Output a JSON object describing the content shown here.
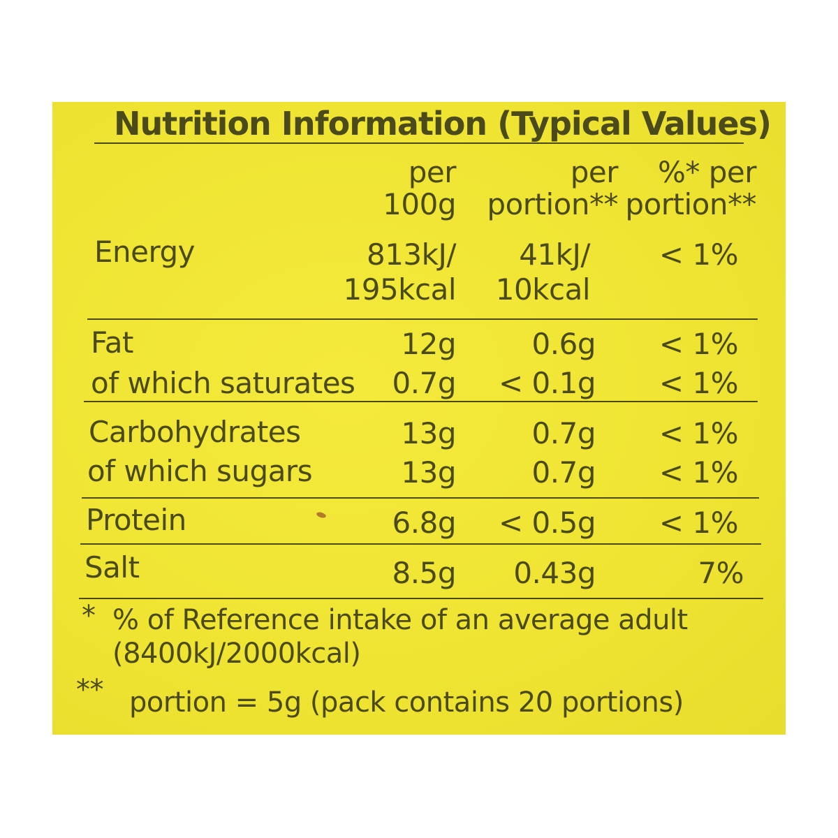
{
  "title": "Nutrition Information (Typical Values)",
  "columns": {
    "per100g": [
      "per",
      "100g"
    ],
    "perPortion": [
      "per",
      "portion**"
    ],
    "pctPortion": [
      "%* per",
      "portion**"
    ]
  },
  "rows": {
    "energy": {
      "label": "Energy",
      "per100g": [
        "813kJ/",
        "195kcal"
      ],
      "perPortion": [
        "41kJ/",
        "10kcal"
      ],
      "pct": "< 1%"
    },
    "fat": {
      "label": "Fat",
      "per100g": "12g",
      "perPortion": "0.6g",
      "pct": "< 1%"
    },
    "saturates": {
      "label": "of which saturates",
      "per100g": "0.7g",
      "perPortion": "< 0.1g",
      "pct": "< 1%"
    },
    "carbs": {
      "label": "Carbohydrates",
      "per100g": "13g",
      "perPortion": "0.7g",
      "pct": "< 1%"
    },
    "sugars": {
      "label": "of which sugars",
      "per100g": "13g",
      "perPortion": "0.7g",
      "pct": "< 1%"
    },
    "protein": {
      "label": "Protein",
      "per100g": "6.8g",
      "perPortion": "< 0.5g",
      "pct": "< 1%"
    },
    "salt": {
      "label": "Salt",
      "per100g": "8.5g",
      "perPortion": "0.43g",
      "pct": "7%"
    }
  },
  "footnotes": {
    "mark1": "*",
    "note1": [
      "% of Reference intake of an average adult",
      "(8400kJ/2000kcal)"
    ],
    "mark2": "**",
    "note2": "portion = 5g (pack contains 20 portions)"
  },
  "colors": {
    "label_background": "#f0e636",
    "ink": "#4b4a1a"
  }
}
